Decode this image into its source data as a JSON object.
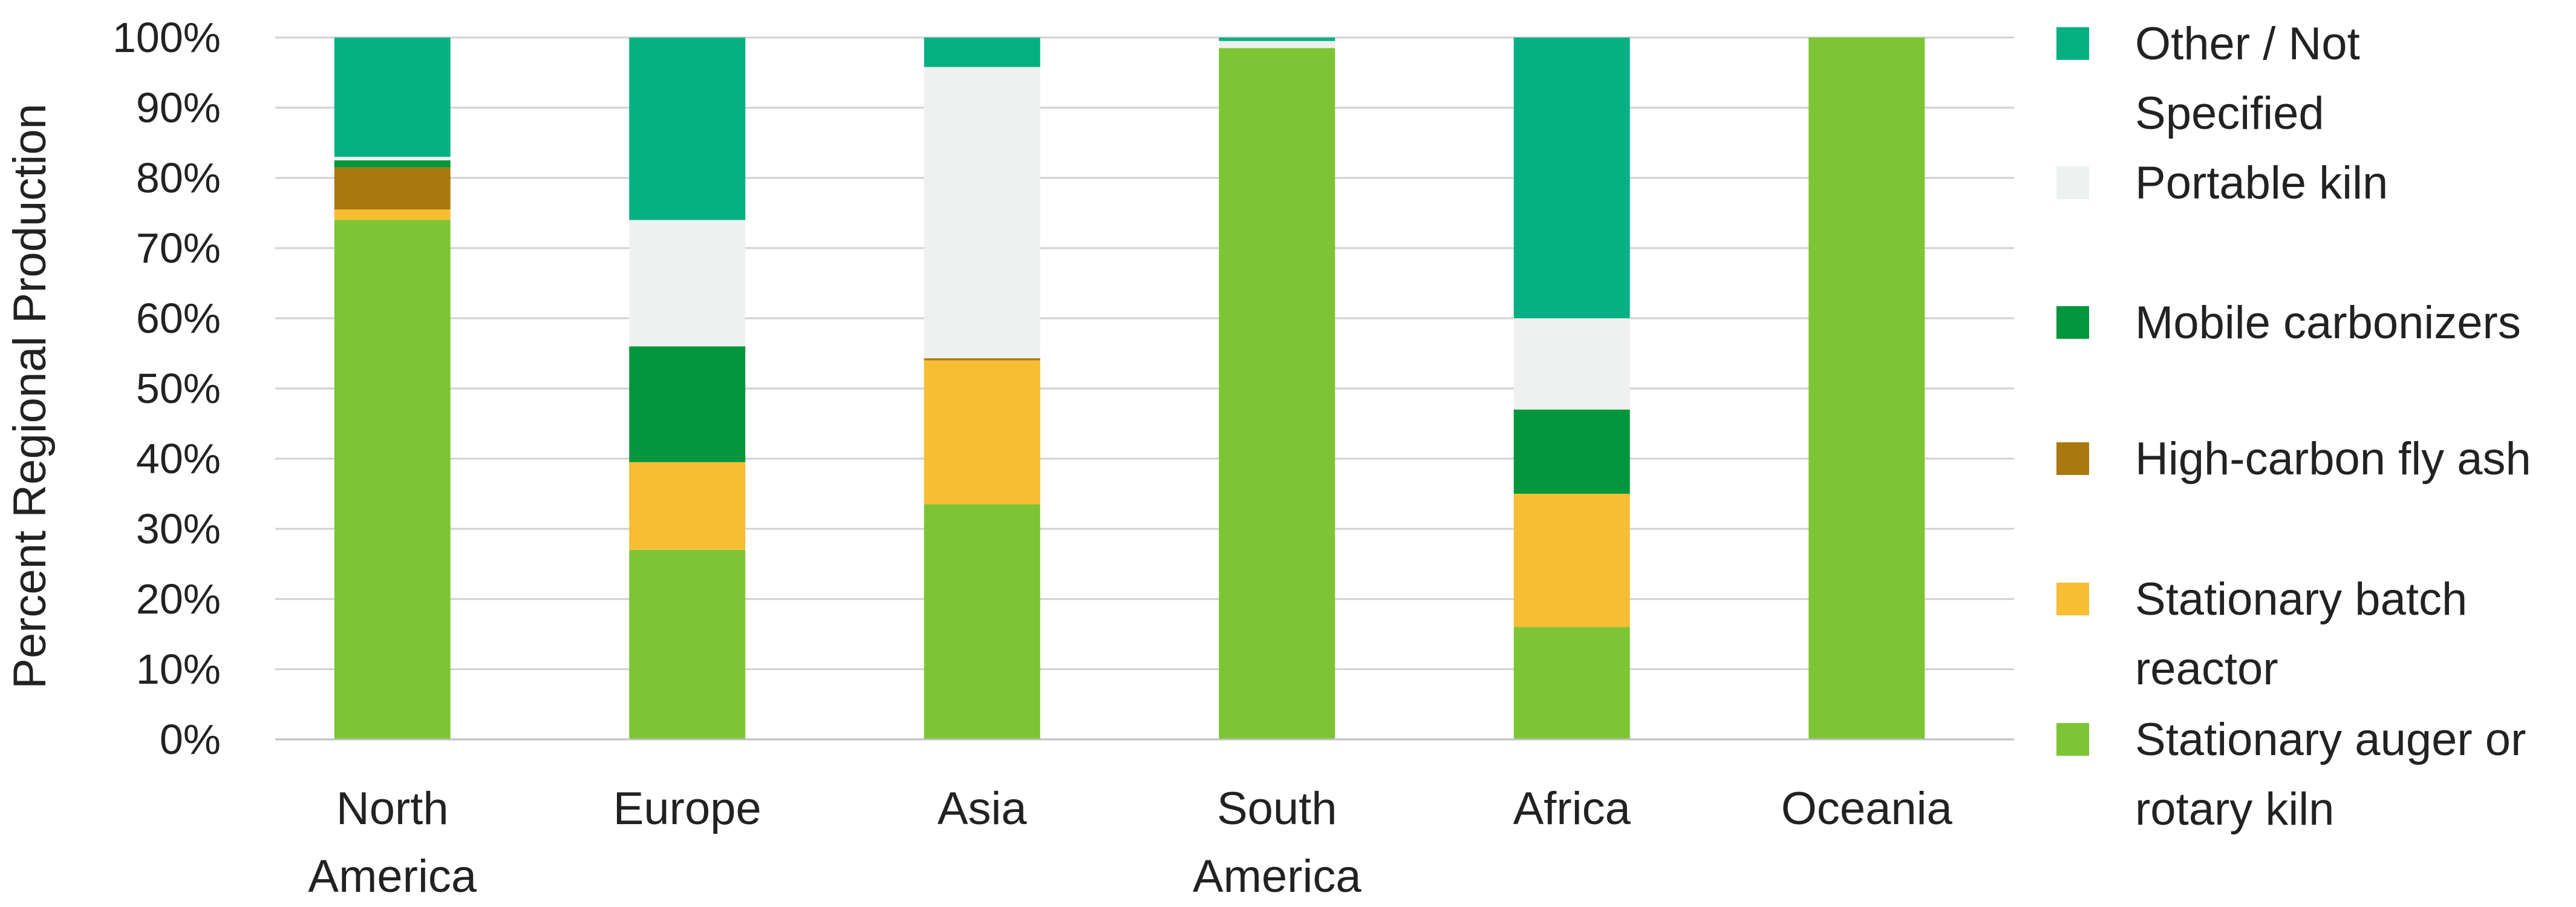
{
  "chart_data": {
    "type": "bar",
    "stacked": true,
    "ylabel": "Percent Regional Production",
    "ylim": [
      0,
      100
    ],
    "yticks": [
      "0%",
      "10%",
      "20%",
      "30%",
      "40%",
      "50%",
      "60%",
      "70%",
      "80%",
      "90%",
      "100%"
    ],
    "grid": true,
    "legend_position": "right",
    "categories": [
      [
        "North",
        "America"
      ],
      [
        "Europe"
      ],
      [
        "Asia"
      ],
      [
        "South",
        "America"
      ],
      [
        "Africa"
      ],
      [
        "Oceania"
      ]
    ],
    "series": [
      {
        "name": [
          "Stationary auger or",
          "rotary kiln"
        ],
        "color": "#7dc535",
        "values": [
          74,
          27,
          33.5,
          98.5,
          16,
          100
        ]
      },
      {
        "name": [
          "Stationary batch",
          "reactor"
        ],
        "color": "#f7bd33",
        "values": [
          1.5,
          12.5,
          20.5,
          0,
          19,
          0
        ]
      },
      {
        "name": [
          "High-carbon fly ash"
        ],
        "color": "#a9790f",
        "values": [
          6,
          0,
          0.3,
          0,
          0,
          0
        ]
      },
      {
        "name": [
          "Mobile carbonizers"
        ],
        "color": "#03973d",
        "values": [
          1,
          16.5,
          0,
          0,
          12,
          0
        ]
      },
      {
        "name": [
          "Portable kiln"
        ],
        "color": "#eff0f0",
        "values": [
          0.5,
          18,
          41.5,
          1,
          13,
          0
        ]
      },
      {
        "name": [
          "Other / Not",
          "Specified"
        ],
        "color": "#05b183",
        "values": [
          17,
          26,
          4.2,
          0.5,
          40,
          0
        ]
      }
    ]
  }
}
